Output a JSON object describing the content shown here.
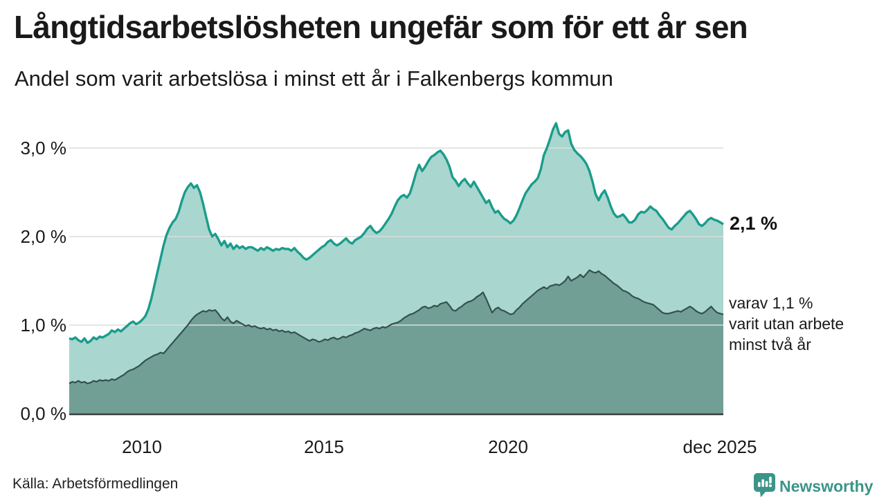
{
  "header": {
    "title": "Långtidsarbetslösheten ungefär som för ett år sen",
    "subtitle": "Andel som varit arbetslösa i minst ett år i Falkenbergs kommun"
  },
  "footer": {
    "source": "Källa: Arbetsförmedlingen",
    "brand": "Newsworthy"
  },
  "colors": {
    "accent_teal": "#1a9c8c",
    "fill_light": "#a9d6ce",
    "line_dark": "#33514b",
    "fill_dark": "#719f96",
    "grid": "#d9dedd",
    "axis": "#3d3d3d",
    "brand_teal": "#3b9488",
    "text": "#1a1a1a"
  },
  "chart_data": {
    "type": "area",
    "title": "Långtidsarbetslösheten ungefär som för ett år sen",
    "subtitle": "Andel som varit arbetslösa i minst ett år i Falkenbergs kommun",
    "x": {
      "start": "2008-01",
      "end": "2025-12",
      "freq": "monthly",
      "points": 216
    },
    "x_ticks": [
      {
        "label": "2010"
      },
      {
        "label": "2015"
      },
      {
        "label": "2020"
      },
      {
        "label": "dec 2025"
      }
    ],
    "y_ticks": [
      "0,0 %",
      "1,0 %",
      "2,0 %",
      "3,0 %"
    ],
    "y_tick_values": [
      0,
      1,
      2,
      3
    ],
    "ylim": [
      0,
      3.35
    ],
    "grid": "horizontal",
    "legend": "direct-labels-right",
    "series": [
      {
        "name": "Andel arbetslösa minst ett år",
        "end_label": "2,1 %",
        "line_color": "#1a9c8c",
        "fill_color": "#a9d6ce",
        "values": [
          0.85,
          0.84,
          0.86,
          0.83,
          0.81,
          0.85,
          0.8,
          0.82,
          0.86,
          0.84,
          0.87,
          0.86,
          0.88,
          0.9,
          0.94,
          0.92,
          0.95,
          0.93,
          0.96,
          0.99,
          1.02,
          1.04,
          1.01,
          1.03,
          1.06,
          1.1,
          1.18,
          1.3,
          1.45,
          1.6,
          1.75,
          1.9,
          2.02,
          2.1,
          2.16,
          2.2,
          2.28,
          2.4,
          2.5,
          2.56,
          2.6,
          2.55,
          2.58,
          2.5,
          2.37,
          2.22,
          2.08,
          2.0,
          2.03,
          1.97,
          1.9,
          1.95,
          1.88,
          1.92,
          1.86,
          1.9,
          1.87,
          1.89,
          1.86,
          1.88,
          1.88,
          1.86,
          1.84,
          1.87,
          1.85,
          1.88,
          1.86,
          1.84,
          1.86,
          1.85,
          1.87,
          1.86,
          1.86,
          1.84,
          1.87,
          1.83,
          1.8,
          1.76,
          1.74,
          1.76,
          1.79,
          1.82,
          1.85,
          1.88,
          1.9,
          1.94,
          1.96,
          1.92,
          1.9,
          1.92,
          1.95,
          1.98,
          1.94,
          1.92,
          1.96,
          1.98,
          2.0,
          2.04,
          2.09,
          2.12,
          2.07,
          2.04,
          2.06,
          2.1,
          2.15,
          2.2,
          2.26,
          2.34,
          2.41,
          2.45,
          2.47,
          2.44,
          2.49,
          2.6,
          2.72,
          2.81,
          2.74,
          2.79,
          2.85,
          2.9,
          2.92,
          2.95,
          2.97,
          2.93,
          2.87,
          2.79,
          2.67,
          2.63,
          2.57,
          2.62,
          2.65,
          2.6,
          2.56,
          2.62,
          2.56,
          2.5,
          2.44,
          2.38,
          2.41,
          2.33,
          2.27,
          2.29,
          2.24,
          2.2,
          2.18,
          2.15,
          2.18,
          2.24,
          2.32,
          2.41,
          2.49,
          2.54,
          2.59,
          2.62,
          2.66,
          2.76,
          2.92,
          3.0,
          3.1,
          3.21,
          3.28,
          3.16,
          3.13,
          3.18,
          3.2,
          3.05,
          2.98,
          2.94,
          2.91,
          2.87,
          2.82,
          2.74,
          2.62,
          2.48,
          2.41,
          2.48,
          2.52,
          2.44,
          2.34,
          2.26,
          2.22,
          2.23,
          2.25,
          2.21,
          2.16,
          2.16,
          2.19,
          2.25,
          2.28,
          2.27,
          2.3,
          2.34,
          2.31,
          2.29,
          2.24,
          2.2,
          2.15,
          2.1,
          2.08,
          2.12,
          2.15,
          2.19,
          2.23,
          2.27,
          2.29,
          2.25,
          2.2,
          2.14,
          2.12,
          2.15,
          2.19,
          2.21,
          2.19,
          2.18,
          2.16,
          2.14
        ]
      },
      {
        "name": "Andel arbetslösa minst två år",
        "end_label_lines": [
          "varav 1,1 %",
          "varit utan arbete",
          "minst två år"
        ],
        "line_color": "#33514b",
        "fill_color": "#719f96",
        "values": [
          0.34,
          0.36,
          0.35,
          0.37,
          0.35,
          0.36,
          0.34,
          0.35,
          0.37,
          0.36,
          0.38,
          0.37,
          0.38,
          0.37,
          0.39,
          0.38,
          0.4,
          0.42,
          0.44,
          0.47,
          0.49,
          0.5,
          0.52,
          0.54,
          0.57,
          0.6,
          0.62,
          0.64,
          0.66,
          0.67,
          0.69,
          0.68,
          0.72,
          0.76,
          0.8,
          0.84,
          0.88,
          0.92,
          0.96,
          1.0,
          1.05,
          1.09,
          1.12,
          1.14,
          1.16,
          1.15,
          1.17,
          1.16,
          1.17,
          1.13,
          1.08,
          1.05,
          1.09,
          1.04,
          1.02,
          1.05,
          1.03,
          1.01,
          0.99,
          1.0,
          0.98,
          0.99,
          0.97,
          0.96,
          0.97,
          0.95,
          0.96,
          0.94,
          0.95,
          0.93,
          0.94,
          0.92,
          0.93,
          0.91,
          0.92,
          0.9,
          0.88,
          0.86,
          0.84,
          0.82,
          0.84,
          0.83,
          0.81,
          0.82,
          0.84,
          0.83,
          0.85,
          0.86,
          0.84,
          0.85,
          0.87,
          0.86,
          0.88,
          0.89,
          0.91,
          0.92,
          0.94,
          0.96,
          0.95,
          0.94,
          0.96,
          0.97,
          0.96,
          0.98,
          0.97,
          0.99,
          1.01,
          1.02,
          1.03,
          1.05,
          1.08,
          1.1,
          1.12,
          1.13,
          1.15,
          1.17,
          1.2,
          1.21,
          1.19,
          1.2,
          1.22,
          1.21,
          1.24,
          1.25,
          1.26,
          1.22,
          1.17,
          1.16,
          1.19,
          1.21,
          1.24,
          1.26,
          1.27,
          1.29,
          1.32,
          1.34,
          1.37,
          1.3,
          1.22,
          1.14,
          1.18,
          1.2,
          1.17,
          1.16,
          1.14,
          1.12,
          1.13,
          1.17,
          1.2,
          1.24,
          1.27,
          1.3,
          1.33,
          1.36,
          1.39,
          1.41,
          1.43,
          1.41,
          1.44,
          1.45,
          1.46,
          1.45,
          1.47,
          1.5,
          1.55,
          1.5,
          1.52,
          1.54,
          1.57,
          1.54,
          1.58,
          1.62,
          1.6,
          1.59,
          1.61,
          1.58,
          1.56,
          1.53,
          1.5,
          1.47,
          1.45,
          1.42,
          1.39,
          1.38,
          1.36,
          1.33,
          1.31,
          1.3,
          1.28,
          1.26,
          1.25,
          1.24,
          1.23,
          1.2,
          1.17,
          1.14,
          1.13,
          1.13,
          1.14,
          1.15,
          1.16,
          1.15,
          1.17,
          1.19,
          1.21,
          1.19,
          1.16,
          1.14,
          1.13,
          1.15,
          1.18,
          1.21,
          1.17,
          1.14,
          1.13,
          1.12
        ]
      }
    ]
  }
}
